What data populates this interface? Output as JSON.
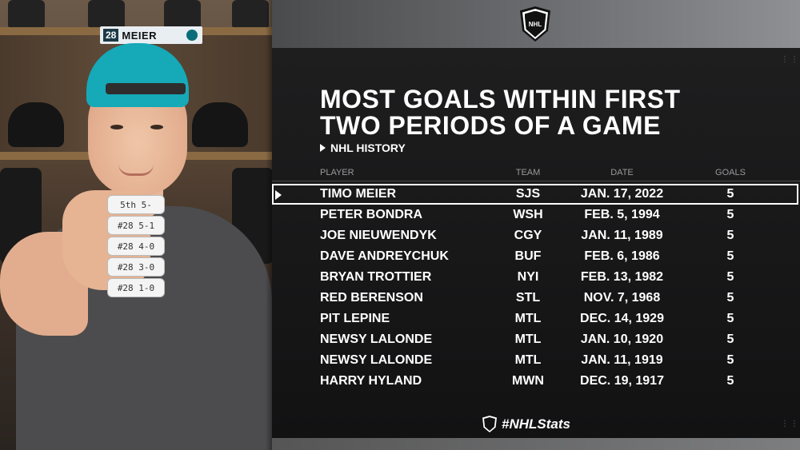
{
  "photo": {
    "nameplate_number": "28",
    "nameplate_name": "MEIER",
    "pucks": [
      "5th 5-",
      "#28 5-1",
      "#28 4-0",
      "#28 3-0",
      "#28 1-0"
    ]
  },
  "logo_text": "NHL",
  "title_line1": "MOST GOALS WITHIN FIRST",
  "title_line2": "TWO PERIODS OF A GAME",
  "subtitle": "NHL HISTORY",
  "columns": {
    "player": "PLAYER",
    "team": "TEAM",
    "date": "DATE",
    "goals": "GOALS"
  },
  "rows": [
    {
      "player": "TIMO MEIER",
      "team": "SJS",
      "date": "JAN. 17, 2022",
      "goals": "5"
    },
    {
      "player": "PETER BONDRA",
      "team": "WSH",
      "date": "FEB. 5, 1994",
      "goals": "5"
    },
    {
      "player": "JOE NIEUWENDYK",
      "team": "CGY",
      "date": "JAN. 11, 1989",
      "goals": "5"
    },
    {
      "player": "DAVE ANDREYCHUK",
      "team": "BUF",
      "date": "FEB. 6, 1986",
      "goals": "5"
    },
    {
      "player": "BRYAN TROTTIER",
      "team": "NYI",
      "date": "FEB. 13, 1982",
      "goals": "5"
    },
    {
      "player": "RED BERENSON",
      "team": "STL",
      "date": "NOV. 7, 1968",
      "goals": "5"
    },
    {
      "player": "PIT LEPINE",
      "team": "MTL",
      "date": "DEC. 14, 1929",
      "goals": "5"
    },
    {
      "player": "NEWSY LALONDE",
      "team": "MTL",
      "date": "JAN. 10, 1920",
      "goals": "5"
    },
    {
      "player": "NEWSY LALONDE",
      "team": "MTL",
      "date": "JAN. 11, 1919",
      "goals": "5"
    },
    {
      "player": "HARRY HYLAND",
      "team": "MWN",
      "date": "DEC. 19, 1917",
      "goals": "5"
    }
  ],
  "footer": "#NHLStats",
  "colors": {
    "background": "#1b1b1c",
    "text": "#ffffff",
    "header_text": "#9a9a9c",
    "cap": "#16a9b8"
  }
}
